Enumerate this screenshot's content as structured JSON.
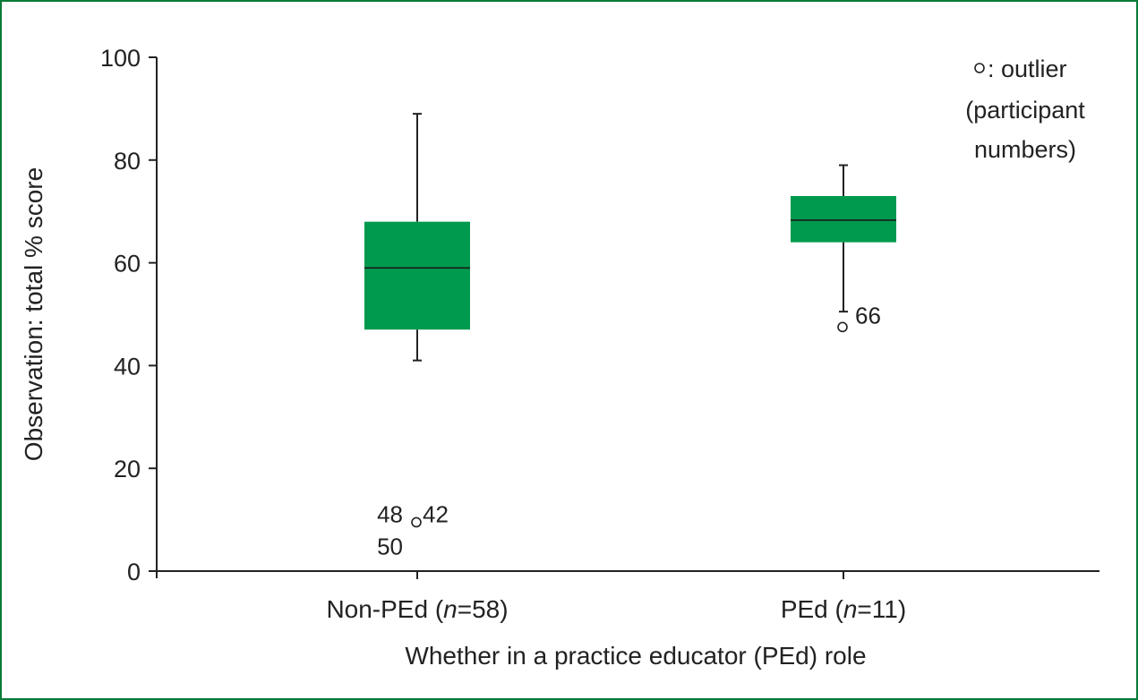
{
  "chart_data": {
    "type": "box",
    "ylabel": "Observation: total % score",
    "xlabel": "Whether in a practice educator (PEd) role",
    "ylim": [
      0,
      100
    ],
    "yticks": [
      "0",
      "20",
      "40",
      "60",
      "80",
      "100"
    ],
    "groups": [
      {
        "label_prefix": "Non-PEd (",
        "label_n": "n",
        "label_suffix": "=58)",
        "whisker_low": 41,
        "q1": 47,
        "median": 59,
        "q3": 68,
        "whisker_high": 89,
        "outliers": [
          {
            "value": 9.5,
            "labels": [
              "48",
              "42",
              "50"
            ]
          }
        ]
      },
      {
        "label_prefix": "PEd (",
        "label_n": "n",
        "label_suffix": "=11)",
        "whisker_low": 50.5,
        "q1": 64,
        "median": 68.3,
        "q3": 73,
        "whisker_high": 79,
        "outliers": [
          {
            "value": 47.5,
            "labels": [
              "66"
            ]
          }
        ]
      }
    ],
    "legend": {
      "symbol": "○",
      "line1": ": outlier",
      "line2": "(participant",
      "line3": "numbers)"
    },
    "colors": {
      "box": "#009a4e",
      "frame": "#0a7a3a",
      "axis": "#222222"
    }
  }
}
